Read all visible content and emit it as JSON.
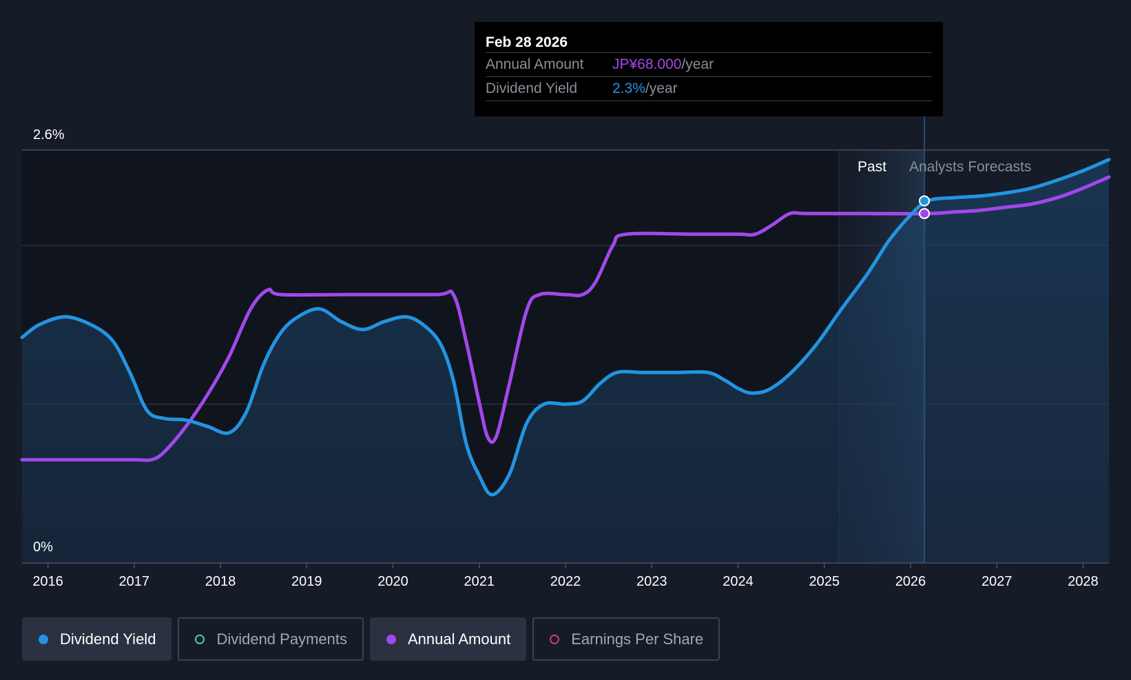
{
  "chart_data": {
    "type": "line",
    "y_axis": {
      "top_label": "2.6%",
      "bottom_label": "0%",
      "ylim": [
        0,
        2.6
      ]
    },
    "x_ticks": [
      "2016",
      "2017",
      "2018",
      "2019",
      "2020",
      "2021",
      "2022",
      "2023",
      "2024",
      "2025",
      "2026",
      "2027",
      "2028"
    ],
    "xlim": [
      2015.7,
      2028.3
    ],
    "regions": {
      "past_label": "Past",
      "forecast_label": "Analysts Forecasts",
      "past_end": 2025.17,
      "forecast_start": 2025.65
    },
    "series": [
      {
        "name": "Dividend Yield",
        "color": "#2394e0",
        "x": [
          2015.7,
          2015.9,
          2016.2,
          2016.5,
          2016.75,
          2016.95,
          2017.15,
          2017.35,
          2017.6,
          2017.85,
          2018.1,
          2018.3,
          2018.5,
          2018.7,
          2018.9,
          2019.15,
          2019.4,
          2019.65,
          2019.9,
          2020.15,
          2020.35,
          2020.55,
          2020.7,
          2020.85,
          2021.0,
          2021.15,
          2021.35,
          2021.55,
          2021.75,
          2022.0,
          2022.2,
          2022.4,
          2022.6,
          2022.9,
          2023.3,
          2023.65,
          2023.85,
          2024.0,
          2024.15,
          2024.35,
          2024.6,
          2024.9,
          2025.2,
          2025.5,
          2025.75,
          2026.0,
          2026.2,
          2026.5,
          2026.8,
          2027.1,
          2027.4,
          2027.7,
          2028.0,
          2028.3
        ],
        "values": [
          1.42,
          1.5,
          1.55,
          1.5,
          1.4,
          1.2,
          0.96,
          0.91,
          0.9,
          0.86,
          0.82,
          0.95,
          1.25,
          1.45,
          1.55,
          1.6,
          1.52,
          1.47,
          1.52,
          1.55,
          1.5,
          1.38,
          1.15,
          0.75,
          0.55,
          0.43,
          0.56,
          0.88,
          1.0,
          1.0,
          1.02,
          1.13,
          1.2,
          1.2,
          1.2,
          1.2,
          1.15,
          1.1,
          1.07,
          1.09,
          1.19,
          1.37,
          1.6,
          1.82,
          2.03,
          2.19,
          2.28,
          2.3,
          2.31,
          2.33,
          2.36,
          2.41,
          2.47,
          2.54
        ]
      },
      {
        "name": "Annual Amount",
        "color": "#a148ea",
        "x": [
          2015.7,
          2016.5,
          2017.0,
          2017.2,
          2017.35,
          2017.6,
          2017.85,
          2018.1,
          2018.35,
          2018.55,
          2018.7,
          2019.5,
          2020.5,
          2020.7,
          2020.85,
          2021.0,
          2021.1,
          2021.2,
          2021.35,
          2021.55,
          2021.7,
          2022.0,
          2022.2,
          2022.35,
          2022.55,
          2022.7,
          2023.5,
          2024.0,
          2024.2,
          2024.4,
          2024.6,
          2024.8,
          2025.5,
          2026.2,
          2026.5,
          2026.8,
          2027.1,
          2027.4,
          2027.7,
          2028.0,
          2028.3
        ],
        "values": [
          0.65,
          0.65,
          0.65,
          0.65,
          0.7,
          0.86,
          1.06,
          1.3,
          1.6,
          1.72,
          1.69,
          1.69,
          1.69,
          1.69,
          1.39,
          1.01,
          0.79,
          0.8,
          1.13,
          1.59,
          1.69,
          1.69,
          1.69,
          1.77,
          2.0,
          2.07,
          2.07,
          2.07,
          2.07,
          2.13,
          2.2,
          2.2,
          2.2,
          2.2,
          2.21,
          2.22,
          2.24,
          2.26,
          2.3,
          2.36,
          2.43
        ]
      }
    ],
    "highlight": {
      "x": 2026.16,
      "yield": 2.28,
      "amount": 2.2
    }
  },
  "tooltip": {
    "date": "Feb 28 2026",
    "rows": [
      {
        "label": "Annual Amount",
        "value": "JP¥68.000",
        "unit": "/year",
        "color": "#a148ea"
      },
      {
        "label": "Dividend Yield",
        "value": "2.3%",
        "unit": "/year",
        "color": "#2394e0"
      }
    ]
  },
  "legend": [
    {
      "label": "Dividend Yield",
      "color": "#2394e0",
      "active": true,
      "filled": true
    },
    {
      "label": "Dividend Payments",
      "color": "#4ec7b8",
      "active": false,
      "filled": false
    },
    {
      "label": "Annual Amount",
      "color": "#a148ea",
      "active": true,
      "filled": true
    },
    {
      "label": "Earnings Per Share",
      "color": "#cb3a7c",
      "active": false,
      "filled": false
    }
  ]
}
